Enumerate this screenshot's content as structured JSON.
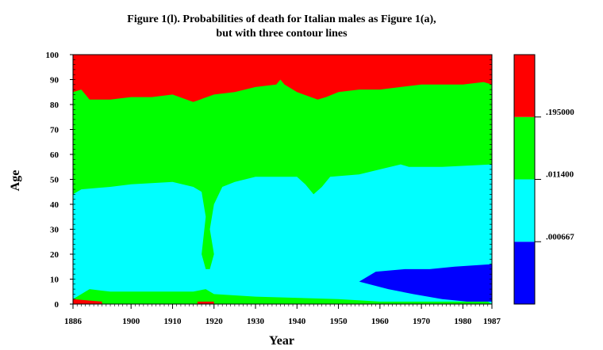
{
  "chart_data": {
    "type": "contour",
    "title": "Figure 1(l). Probabilities of death for Italian males as Figure 1(a),",
    "subtitle": "but with three contour lines",
    "xlabel": "Year",
    "ylabel": "Age",
    "xlim": [
      1886,
      1987
    ],
    "ylim": [
      0,
      100
    ],
    "x_ticks": [
      "1886",
      "1900",
      "1910",
      "1920",
      "1930",
      "1940",
      "1950",
      "1960",
      "1970",
      "1980",
      "1987"
    ],
    "y_ticks": [
      "0",
      "10",
      "20",
      "30",
      "40",
      "50",
      "60",
      "70",
      "80",
      "90",
      "100"
    ],
    "contour_levels": [
      ".000667",
      ".011400",
      ".195000"
    ],
    "colors": {
      "band_lowest": "#0000ff",
      "band_low": "#00ffff",
      "band_mid": "#00ff00",
      "band_high": "#ff0000"
    },
    "regions": {
      "high": [
        [
          1886,
          100
        ],
        [
          1886,
          85
        ],
        [
          1888,
          86
        ],
        [
          1890,
          82
        ],
        [
          1895,
          82
        ],
        [
          1900,
          83
        ],
        [
          1905,
          83
        ],
        [
          1910,
          84
        ],
        [
          1915,
          81
        ],
        [
          1920,
          84
        ],
        [
          1925,
          85
        ],
        [
          1930,
          87
        ],
        [
          1935,
          88
        ],
        [
          1936,
          90
        ],
        [
          1937,
          88
        ],
        [
          1940,
          85
        ],
        [
          1945,
          82
        ],
        [
          1947,
          83
        ],
        [
          1950,
          85
        ],
        [
          1955,
          86
        ],
        [
          1960,
          86
        ],
        [
          1965,
          87
        ],
        [
          1970,
          88
        ],
        [
          1975,
          88
        ],
        [
          1980,
          88
        ],
        [
          1985,
          89
        ],
        [
          1987,
          88
        ],
        [
          1987,
          100
        ]
      ],
      "low": [
        [
          1886,
          2
        ],
        [
          1886,
          44
        ],
        [
          1888,
          46
        ],
        [
          1895,
          47
        ],
        [
          1900,
          48
        ],
        [
          1910,
          49
        ],
        [
          1915,
          47
        ],
        [
          1917,
          45
        ],
        [
          1918,
          35
        ],
        [
          1917,
          20
        ],
        [
          1918,
          14
        ],
        [
          1919,
          14
        ],
        [
          1920,
          20
        ],
        [
          1919,
          30
        ],
        [
          1920,
          40
        ],
        [
          1922,
          47
        ],
        [
          1925,
          49
        ],
        [
          1930,
          51
        ],
        [
          1940,
          51
        ],
        [
          1942,
          48
        ],
        [
          1944,
          44
        ],
        [
          1946,
          47
        ],
        [
          1948,
          51
        ],
        [
          1955,
          52
        ],
        [
          1960,
          54
        ],
        [
          1965,
          56
        ],
        [
          1967,
          55
        ],
        [
          1975,
          55
        ],
        [
          1987,
          56
        ],
        [
          1987,
          0
        ],
        [
          1986,
          1
        ],
        [
          1960,
          1
        ],
        [
          1950,
          2
        ],
        [
          1930,
          3
        ],
        [
          1920,
          4
        ],
        [
          1918,
          6
        ],
        [
          1915,
          5
        ],
        [
          1895,
          5
        ],
        [
          1890,
          6
        ],
        [
          1886,
          2
        ]
      ],
      "lowest": [
        [
          1955,
          9
        ],
        [
          1959,
          13
        ],
        [
          1966,
          14
        ],
        [
          1972,
          14
        ],
        [
          1978,
          15
        ],
        [
          1987,
          16
        ],
        [
          1987,
          1
        ],
        [
          1981,
          1
        ],
        [
          1975,
          2
        ],
        [
          1968,
          4
        ],
        [
          1962,
          6
        ]
      ],
      "high_small": [
        [
          [
            1886,
            0
          ],
          [
            1886,
            2
          ],
          [
            1893,
            1
          ],
          [
            1893,
            0
          ]
        ],
        [
          [
            1916,
            0
          ],
          [
            1916,
            1
          ],
          [
            1920,
            1
          ],
          [
            1920,
            0
          ]
        ]
      ]
    },
    "legend": {
      "position": "right",
      "bands": [
        "band_lowest",
        "band_low",
        "band_mid",
        "band_high"
      ],
      "labels": [
        ".000667",
        ".011400",
        ".195000"
      ]
    }
  }
}
